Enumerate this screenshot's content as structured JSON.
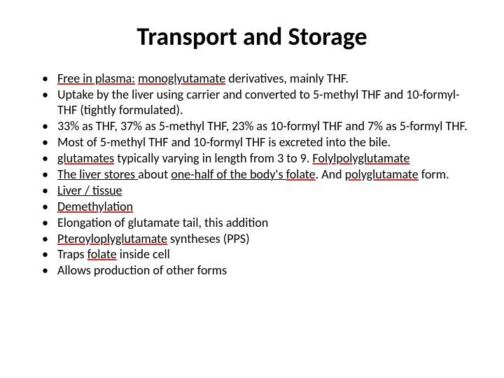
{
  "title": "Transport and Storage",
  "bullets": [
    {
      "segments": [
        {
          "text": "Free in plasma:",
          "class": "u-red"
        },
        {
          "text": " "
        },
        {
          "text": "monoglyutamate",
          "class": "u-red"
        },
        {
          "text": " derivatives, mainly THF."
        }
      ]
    },
    {
      "segments": [
        {
          "text": " Uptake by the liver using carrier and converted to 5-methyl THF and 10-formyl-THF (tightly formulated)."
        }
      ]
    },
    {
      "segments": [
        {
          "text": "33% as THF, 37% as 5-methyl THF, 23% as 10-formyl THF and 7% as 5-formyl THF."
        }
      ]
    },
    {
      "segments": [
        {
          "text": "Most of 5-methyl THF and 10-formyl THF is excreted into the bile."
        }
      ]
    },
    {
      "segments": [
        {
          "text": "glutamates",
          "class": "u-red"
        },
        {
          "text": " typically varying in length from 3 to 9. "
        },
        {
          "text": "Folylpolyglutamate",
          "class": "u-red"
        }
      ]
    },
    {
      "segments": [
        {
          "text": "The liver stores ",
          "class": "u-black"
        },
        {
          "text": "about "
        },
        {
          "text": "one-half of the body's ",
          "class": "u-black"
        },
        {
          "text": "folate",
          "class": "u-red"
        },
        {
          "text": ". And "
        },
        {
          "text": "polyglutamate",
          "class": "u-red"
        },
        {
          "text": " form."
        }
      ]
    },
    {
      "segments": [
        {
          "text": "Liver / tissue",
          "class": "u-black"
        }
      ]
    },
    {
      "segments": [
        {
          "text": "Demethylation",
          "class": "u-red"
        }
      ]
    },
    {
      "segments": [
        {
          "text": "Elongation of glutamate tail, this addition"
        }
      ]
    },
    {
      "segments": [
        {
          "text": "Pteroyloplyglutamate",
          "class": "u-red"
        },
        {
          "text": " syntheses (PPS)"
        }
      ]
    },
    {
      "segments": [
        {
          "text": "Traps "
        },
        {
          "text": "folate",
          "class": "u-red"
        },
        {
          "text": " inside cell"
        }
      ]
    },
    {
      "segments": [
        {
          "text": "Allows production of other forms"
        }
      ]
    }
  ],
  "colors": {
    "background": "#ffffff",
    "text": "#000000",
    "underline_red": "#d02a2a"
  },
  "typography": {
    "title_fontsize": 36,
    "title_weight": 700,
    "body_fontsize": 18,
    "font_family": "Calibri"
  }
}
